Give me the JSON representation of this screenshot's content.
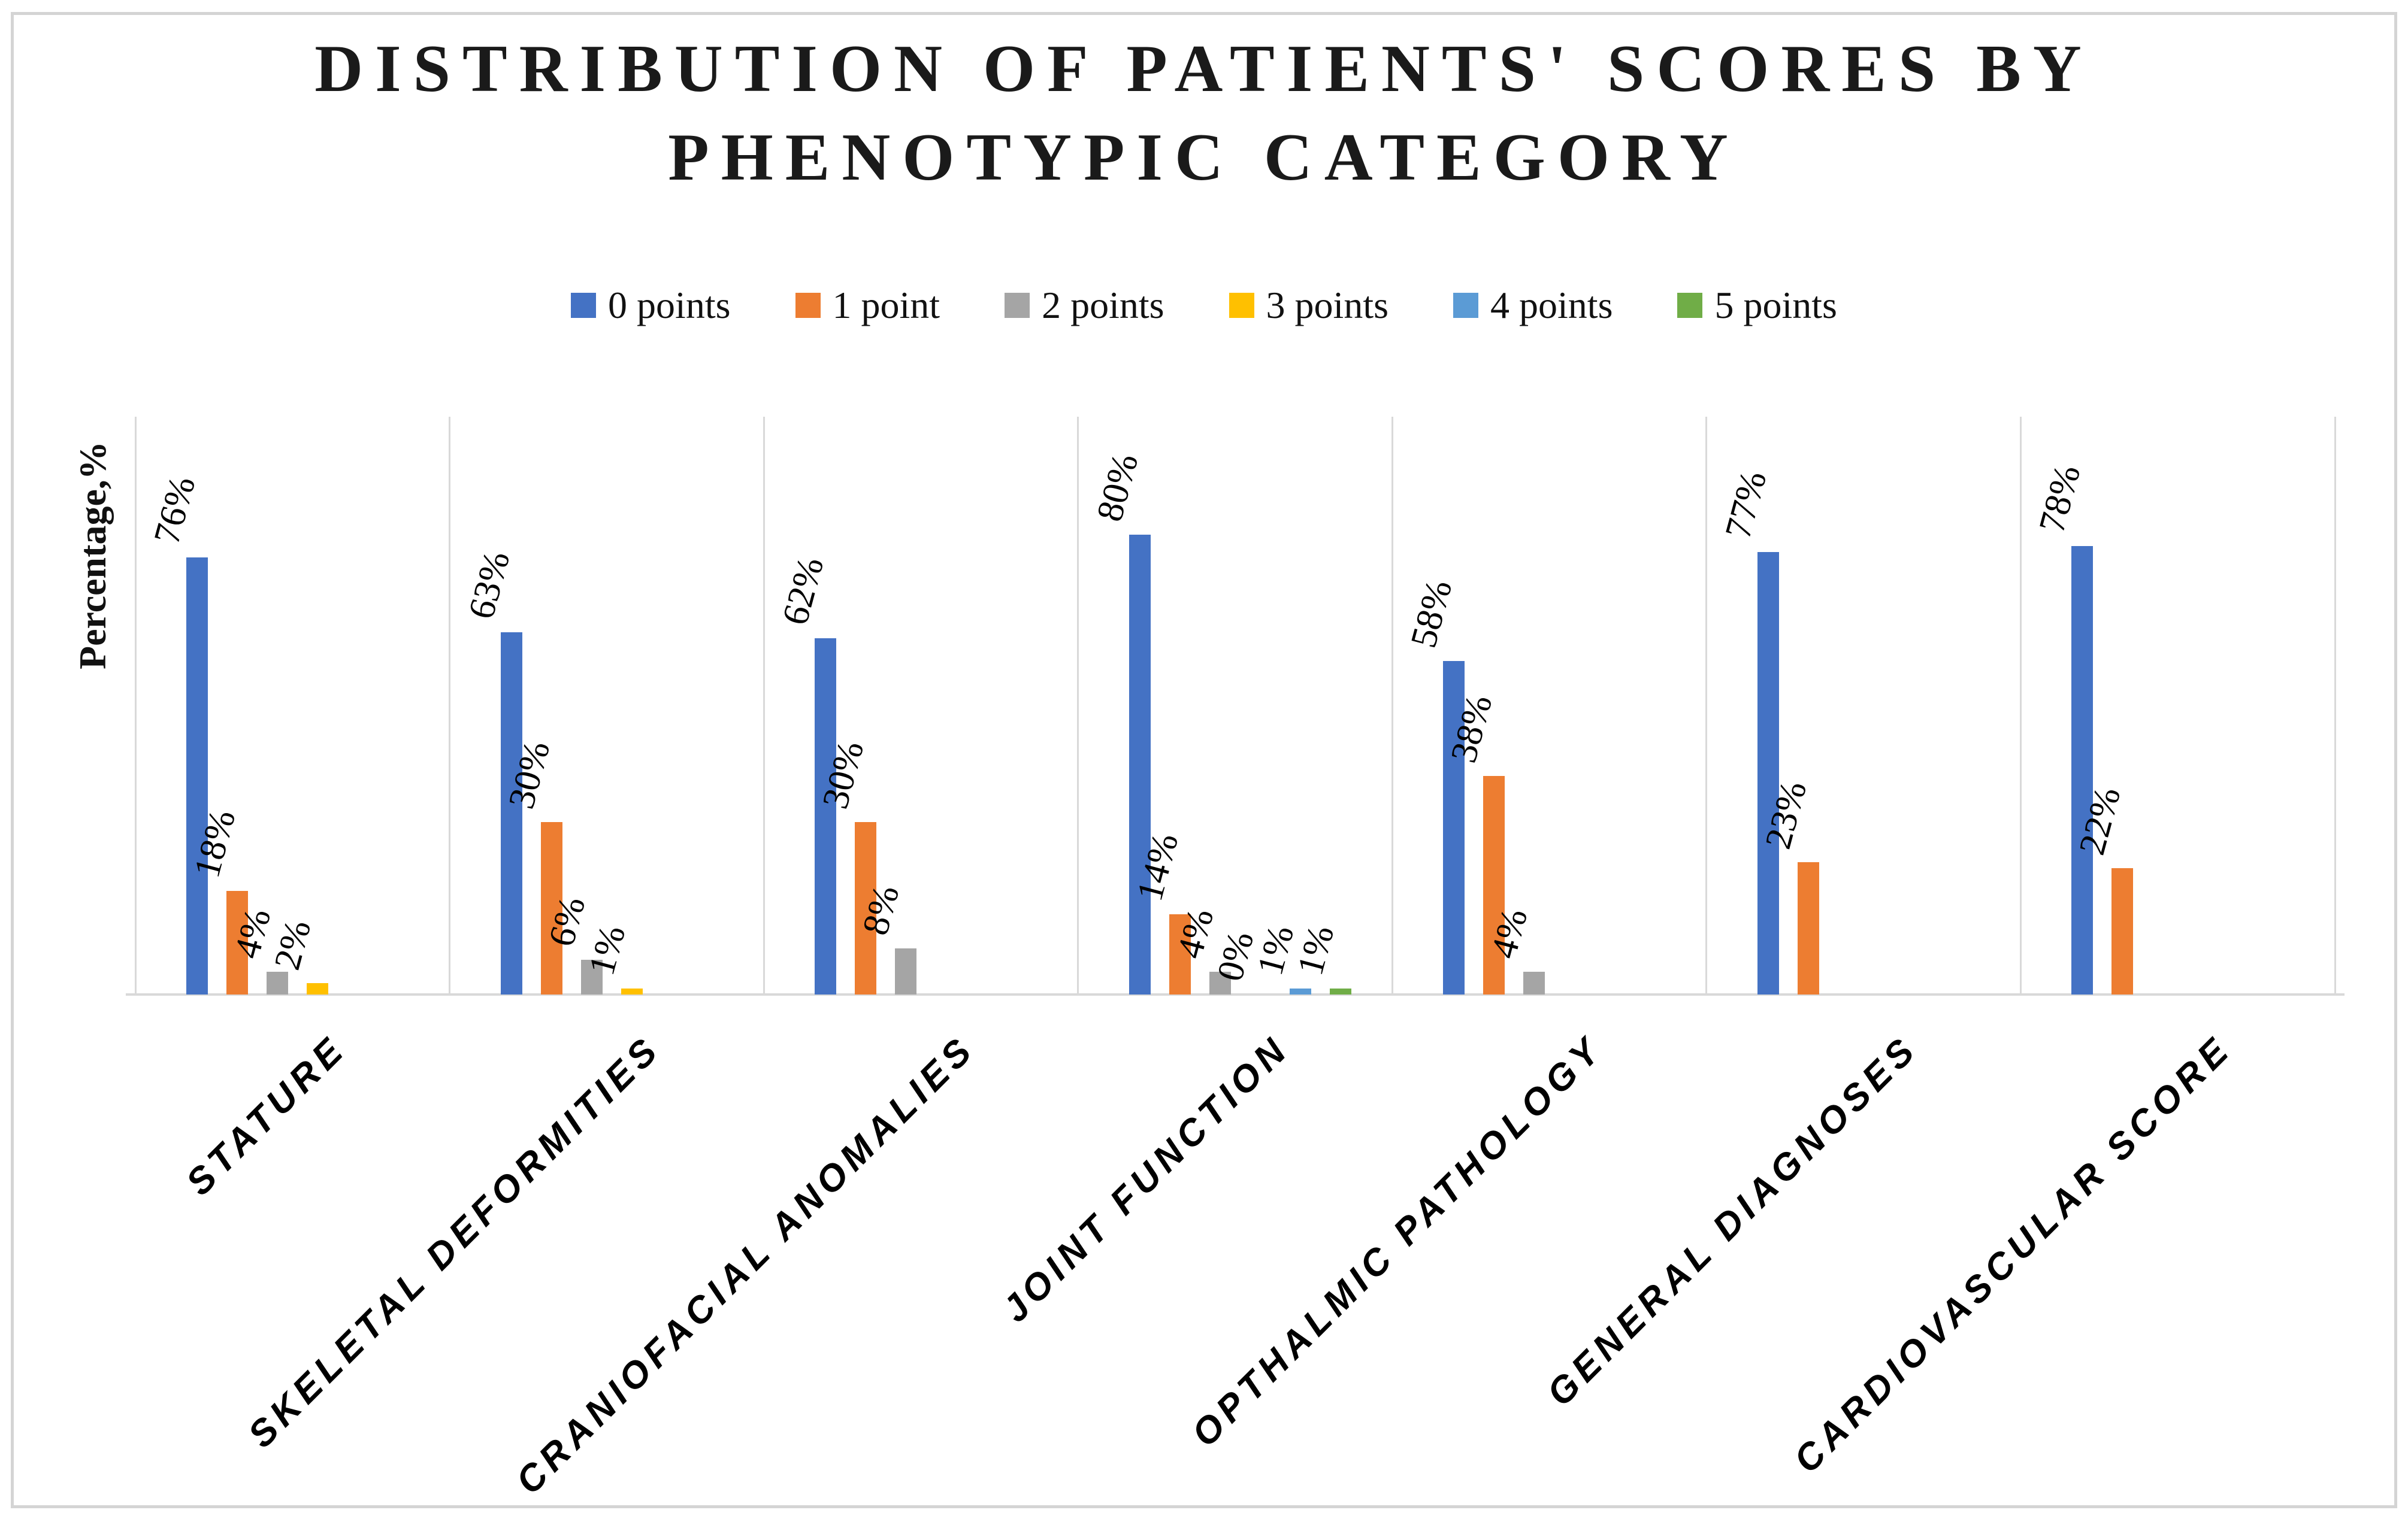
{
  "title": "DISTRIBUTION OF PATIENTS' SCORES BY PHENOTYPIC CATEGORY",
  "chart_data": {
    "type": "bar",
    "title": "DISTRIBUTION OF PATIENTS' SCORES BY PHENOTYPIC CATEGORY",
    "xlabel": "",
    "ylabel": "Percentage,%",
    "ylim": [
      0,
      100
    ],
    "grid": "vertical-category-separators",
    "legend_position": "top",
    "data_label_suffix": "%",
    "categories": [
      "STATURE",
      "SKELETAL DEFORMITIES",
      "CRANIOFACIAL ANOMALIES",
      "JOINT FUNCTION",
      "OPTHALMIC PATHOLOGY",
      "GENERAL DIAGNOSES",
      "CARDIOVASCULAR SCORE"
    ],
    "series": [
      {
        "name": "0 points",
        "color": "#4472C4",
        "values": [
          76,
          63,
          62,
          80,
          58,
          77,
          78
        ]
      },
      {
        "name": "1 point",
        "color": "#ED7D31",
        "values": [
          18,
          30,
          30,
          14,
          38,
          23,
          22
        ]
      },
      {
        "name": "2 points",
        "color": "#A5A5A5",
        "values": [
          4,
          6,
          8,
          4,
          4,
          null,
          null
        ]
      },
      {
        "name": "3 points",
        "color": "#FFC000",
        "values": [
          2,
          1,
          null,
          0,
          null,
          null,
          null
        ]
      },
      {
        "name": "4 points",
        "color": "#5B9BD5",
        "values": [
          null,
          null,
          null,
          1,
          null,
          null,
          null
        ]
      },
      {
        "name": "5 points",
        "color": "#70AD47",
        "values": [
          null,
          null,
          null,
          1,
          null,
          null,
          null
        ]
      }
    ]
  }
}
